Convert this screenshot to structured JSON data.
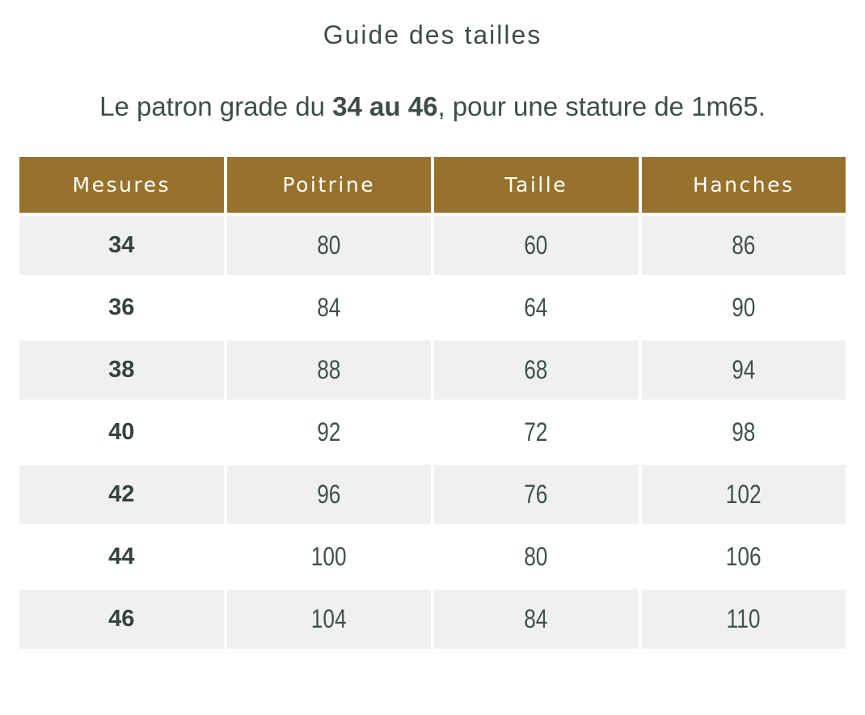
{
  "page": {
    "title": "Guide des tailles",
    "subtitle": {
      "prefix": "Le patron grade du ",
      "bold": "34 au 46",
      "suffix": ", pour une stature de 1m65."
    }
  },
  "size_table": {
    "headers": [
      "Mesures",
      "Poitrine",
      "Taille",
      "Hanches"
    ],
    "rows": [
      [
        "34",
        "80",
        "60",
        "86"
      ],
      [
        "36",
        "84",
        "64",
        "90"
      ],
      [
        "38",
        "88",
        "68",
        "94"
      ],
      [
        "40",
        "92",
        "72",
        "98"
      ],
      [
        "42",
        "96",
        "76",
        "102"
      ],
      [
        "44",
        "100",
        "80",
        "106"
      ],
      [
        "46",
        "104",
        "84",
        "110"
      ]
    ]
  },
  "colors": {
    "header_bg": "#97722c",
    "row_alt_bg": "#f0f0f0",
    "text": "#3f4d46",
    "header_text": "#ffffff"
  }
}
